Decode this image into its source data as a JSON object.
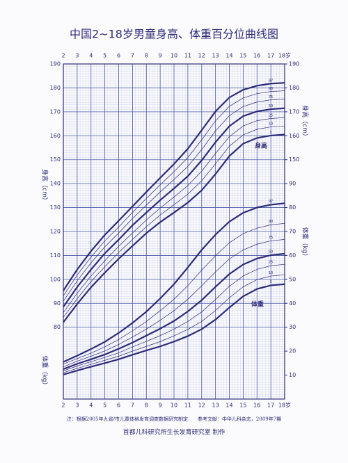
{
  "chart_data": {
    "type": "line",
    "title": "中国2~18岁男童身高、体重百分位曲线图",
    "x": [
      2,
      3,
      4,
      5,
      6,
      7,
      8,
      9,
      10,
      11,
      12,
      13,
      14,
      15,
      16,
      17,
      18
    ],
    "xlim": [
      2,
      18
    ],
    "xticks": [
      2,
      3,
      4,
      5,
      6,
      7,
      8,
      9,
      10,
      11,
      12,
      13,
      14,
      15,
      16,
      17,
      {
        "value": 18,
        "label": "18岁"
      }
    ],
    "ylim": [
      50,
      190
    ],
    "yticks": [
      80,
      90,
      100,
      110,
      120,
      130,
      140,
      150,
      160,
      170,
      180,
      190
    ],
    "y_right_ticks": [
      150,
      160,
      170,
      180,
      190
    ],
    "y2lim": [
      0,
      140
    ],
    "y2ticks": [
      10,
      20,
      30,
      40,
      50,
      60,
      70,
      80,
      90
    ],
    "y_label": "身高（cm）",
    "y2_label": "体重（kg）",
    "grid": true,
    "color": "#2c2b78",
    "annotations": [
      "身高",
      "体重"
    ],
    "notes": [
      "注：根据2005年九省/市儿童体格发育调查数据研究制定　　参考文献：中华儿科杂志，2009年7期",
      "首都儿科研究所生长发育研究室 制作"
    ],
    "series": [
      {
        "name": "3",
        "values": [
          82.1,
          89.7,
          96.7,
          102.8,
          108.6,
          114.0,
          119.3,
          123.9,
          127.9,
          132.1,
          137.2,
          144.0,
          151.5,
          156.7,
          159.1,
          160.1,
          160.5
        ]
      },
      {
        "name": "10",
        "values": [
          84.1,
          91.9,
          99.1,
          105.3,
          111.2,
          116.7,
          122.0,
          126.9,
          131.2,
          135.6,
          141.2,
          148.3,
          155.6,
          160.4,
          162.7,
          163.7,
          164.1
        ]
      },
      {
        "name": "25",
        "values": [
          86.1,
          94.2,
          101.4,
          107.8,
          113.8,
          119.4,
          124.8,
          129.8,
          134.4,
          139.2,
          145.2,
          152.6,
          159.6,
          164.1,
          166.3,
          167.2,
          167.6
        ]
      },
      {
        "name": "50",
        "values": [
          88.5,
          96.8,
          104.1,
          110.9,
          116.6,
          122.6,
          127.9,
          133.1,
          138.0,
          143.1,
          149.7,
          157.3,
          164.0,
          168.2,
          170.2,
          171.1,
          171.5
        ]
      },
      {
        "name": "75",
        "values": [
          90.9,
          99.4,
          106.9,
          113.6,
          119.4,
          125.4,
          131.0,
          136.5,
          141.7,
          147.2,
          154.2,
          162.0,
          168.4,
          172.2,
          174.1,
          175.0,
          175.4
        ]
      },
      {
        "name": "90",
        "values": [
          93.1,
          101.8,
          109.3,
          116.1,
          121.9,
          128.0,
          133.8,
          139.5,
          145.0,
          150.9,
          158.3,
          166.2,
          172.3,
          175.8,
          177.6,
          178.5,
          178.8
        ]
      },
      {
        "name": "97",
        "values": [
          95.3,
          104.1,
          111.8,
          118.6,
          124.5,
          130.5,
          136.5,
          142.4,
          148.2,
          154.6,
          162.3,
          170.2,
          176.0,
          179.2,
          180.9,
          181.8,
          182.1
        ]
      },
      {
        "name": "3",
        "axis": "y2",
        "values": [
          10.2,
          11.9,
          13.5,
          15.0,
          16.6,
          18.5,
          20.3,
          22.0,
          24.0,
          26.3,
          29.2,
          33.2,
          38.2,
          42.9,
          46.0,
          47.5,
          48.0
        ]
      },
      {
        "name": "10",
        "axis": "y2",
        "values": [
          11.0,
          12.8,
          14.5,
          16.2,
          17.9,
          20.0,
          22.0,
          24.0,
          26.4,
          29.1,
          32.4,
          37.0,
          42.3,
          46.9,
          49.9,
          51.4,
          51.9
        ]
      },
      {
        "name": "25",
        "axis": "y2",
        "values": [
          11.8,
          13.8,
          15.6,
          17.4,
          19.3,
          21.8,
          24.1,
          26.5,
          29.2,
          32.4,
          36.4,
          41.6,
          47.1,
          51.4,
          54.2,
          55.7,
          56.3
        ]
      },
      {
        "name": "50",
        "axis": "y2",
        "values": [
          12.5,
          14.7,
          16.6,
          18.6,
          21.0,
          23.6,
          26.5,
          29.4,
          32.6,
          36.6,
          41.3,
          46.9,
          52.2,
          56.2,
          58.7,
          60.1,
          60.7
        ]
      },
      {
        "name": "75",
        "axis": "y2",
        "values": [
          13.5,
          15.8,
          17.9,
          20.1,
          22.8,
          25.9,
          29.2,
          32.9,
          36.9,
          41.7,
          47.3,
          53.1,
          58.5,
          62.3,
          64.7,
          66.1,
          66.7
        ]
      },
      {
        "name": "90",
        "axis": "y2",
        "values": [
          14.6,
          16.9,
          19.2,
          21.8,
          24.9,
          28.5,
          32.4,
          36.9,
          41.7,
          47.4,
          53.8,
          59.9,
          65.3,
          69.1,
          71.4,
          72.8,
          73.4
        ]
      },
      {
        "name": "97",
        "axis": "y2",
        "values": [
          15.5,
          18.1,
          20.9,
          23.9,
          27.6,
          31.8,
          36.5,
          42.0,
          48.0,
          55.0,
          62.3,
          68.7,
          74.1,
          77.8,
          80.0,
          81.2,
          81.8
        ]
      }
    ]
  }
}
